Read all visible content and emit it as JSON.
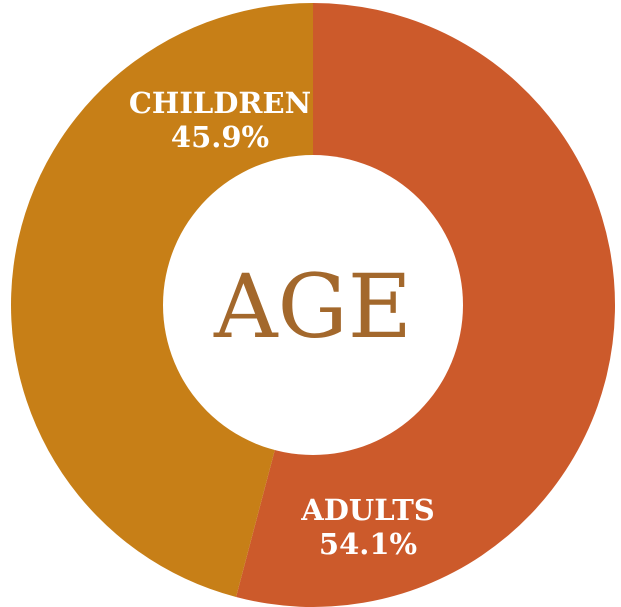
{
  "chart_data": {
    "type": "pie",
    "variant": "donut",
    "center_label": "AGE",
    "slices": [
      {
        "label": "ADULTS",
        "value": 54.1,
        "value_label": "54.1%",
        "color": "#cc5a2b"
      },
      {
        "label": "CHILDREN",
        "value": 45.9,
        "value_label": "45.9%",
        "color": "#c77f17"
      }
    ],
    "center_color": "#a3682c",
    "background": "#ffffff"
  }
}
